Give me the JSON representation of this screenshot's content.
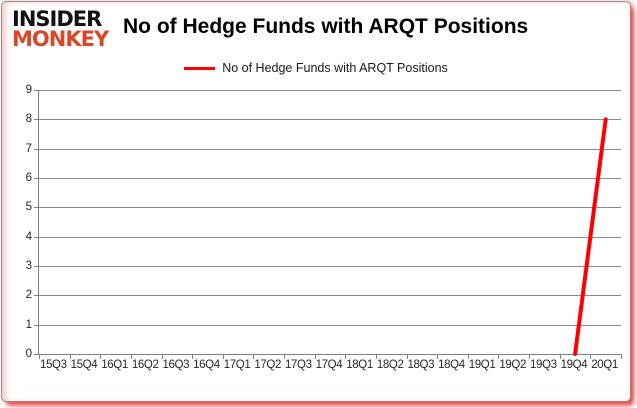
{
  "branding": {
    "logo_line1": "INSIDER",
    "logo_line2": "MONKEY",
    "logo_color": "#d9472b"
  },
  "header": {
    "title": "No of Hedge Funds with ARQT Positions"
  },
  "legend": {
    "label": "No of Hedge Funds with ARQT Positions",
    "line_color": "#ff0000"
  },
  "chart_data": {
    "type": "line",
    "title": "No of Hedge Funds with ARQT Positions",
    "categories": [
      "15Q3",
      "15Q4",
      "16Q1",
      "16Q2",
      "16Q3",
      "16Q4",
      "17Q1",
      "17Q2",
      "17Q3",
      "17Q4",
      "18Q1",
      "18Q2",
      "18Q3",
      "18Q4",
      "19Q1",
      "19Q2",
      "19Q3",
      "19Q4",
      "20Q1"
    ],
    "series": [
      {
        "name": "No of Hedge Funds with ARQT Positions",
        "color": "#ff0000",
        "values": [
          null,
          null,
          null,
          null,
          null,
          null,
          null,
          null,
          null,
          null,
          null,
          null,
          null,
          null,
          null,
          null,
          null,
          0,
          8
        ]
      }
    ],
    "xlabel": "",
    "ylabel": "",
    "ylim": [
      0,
      9
    ],
    "ytick_step": 1,
    "grid": "horizontal-only",
    "legend_position": "top-center"
  },
  "colors": {
    "gridline": "#8a8a8a",
    "axis": "#808080",
    "tick_text": "#262626",
    "title_text": "#000000",
    "frame_glow": "#e61e1e"
  }
}
